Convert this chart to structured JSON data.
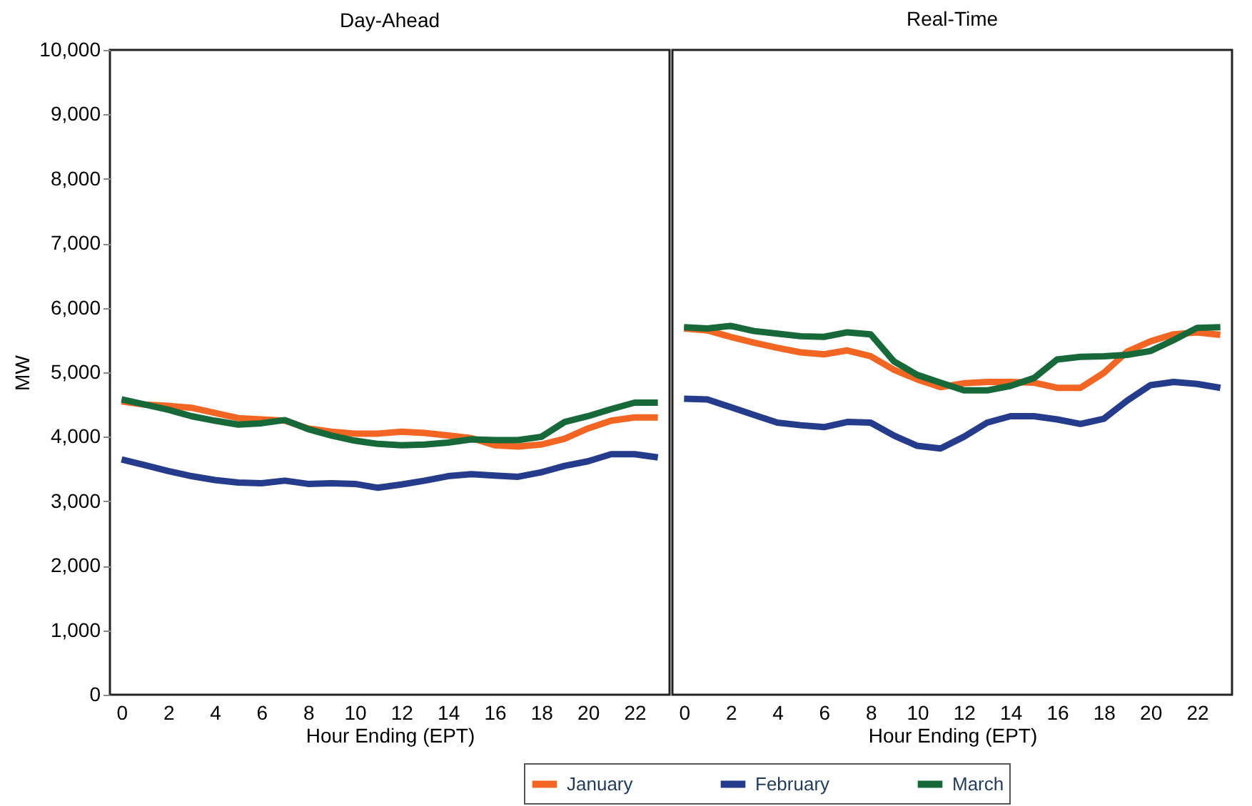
{
  "chart_data": [
    {
      "type": "line",
      "title": "Day-Ahead",
      "xlabel": "Hour Ending (EPT)",
      "ylabel": "MW",
      "x": [
        0,
        1,
        2,
        3,
        4,
        5,
        6,
        7,
        8,
        9,
        10,
        11,
        12,
        13,
        14,
        15,
        16,
        17,
        18,
        19,
        20,
        21,
        22,
        23
      ],
      "series": [
        {
          "name": "January",
          "color": "#f26522",
          "values": [
            4550,
            4500,
            4480,
            4450,
            4370,
            4290,
            4270,
            4250,
            4130,
            4080,
            4050,
            4050,
            4080,
            4060,
            4020,
            3980,
            3870,
            3850,
            3880,
            3970,
            4130,
            4250,
            4300,
            4300
          ]
        },
        {
          "name": "February",
          "color": "#253b8c",
          "values": [
            3650,
            3560,
            3470,
            3390,
            3330,
            3290,
            3280,
            3320,
            3270,
            3280,
            3270,
            3210,
            3260,
            3320,
            3390,
            3420,
            3400,
            3380,
            3450,
            3550,
            3620,
            3730,
            3730,
            3680
          ]
        },
        {
          "name": "March",
          "color": "#17693a",
          "values": [
            4580,
            4500,
            4420,
            4320,
            4250,
            4190,
            4210,
            4260,
            4120,
            4020,
            3940,
            3890,
            3870,
            3880,
            3910,
            3960,
            3950,
            3950,
            4000,
            4230,
            4320,
            4430,
            4530,
            4530
          ]
        }
      ],
      "xlim": [
        -0.5,
        23.5
      ],
      "xticks": [
        0,
        2,
        4,
        6,
        8,
        10,
        12,
        14,
        16,
        18,
        20,
        22
      ],
      "ylim": [
        0,
        10000
      ],
      "yticks": [
        {
          "value": 0,
          "label": "0"
        },
        {
          "value": 1000,
          "label": "1,000"
        },
        {
          "value": 2000,
          "label": "2,000"
        },
        {
          "value": 3000,
          "label": "3,000"
        },
        {
          "value": 4000,
          "label": "4,000"
        },
        {
          "value": 5000,
          "label": "5,000"
        },
        {
          "value": 6000,
          "label": "6,000"
        },
        {
          "value": 7000,
          "label": "7,000"
        },
        {
          "value": 8000,
          "label": "8,000"
        },
        {
          "value": 9000,
          "label": "9,000"
        },
        {
          "value": 10000,
          "label": "10,000"
        }
      ],
      "legend": "bottom",
      "grid": false,
      "marker": "none"
    },
    {
      "type": "line",
      "title": "Real-Time",
      "xlabel": "Hour Ending (EPT)",
      "x": [
        0,
        1,
        2,
        3,
        4,
        5,
        6,
        7,
        8,
        9,
        10,
        11,
        12,
        13,
        14,
        15,
        16,
        17,
        18,
        19,
        20,
        21,
        22,
        23
      ],
      "series": [
        {
          "name": "January",
          "color": "#f26522",
          "values": [
            5680,
            5650,
            5550,
            5460,
            5380,
            5310,
            5280,
            5340,
            5250,
            5040,
            4890,
            4770,
            4830,
            4850,
            4850,
            4840,
            4760,
            4760,
            4990,
            5320,
            5480,
            5590,
            5620,
            5580
          ]
        },
        {
          "name": "February",
          "color": "#253b8c",
          "values": [
            4590,
            4580,
            4460,
            4340,
            4220,
            4180,
            4150,
            4230,
            4220,
            4020,
            3860,
            3820,
            4000,
            4220,
            4320,
            4320,
            4270,
            4200,
            4280,
            4560,
            4800,
            4850,
            4820,
            4760
          ]
        },
        {
          "name": "March",
          "color": "#17693a",
          "values": [
            5700,
            5680,
            5720,
            5640,
            5600,
            5560,
            5550,
            5620,
            5590,
            5170,
            4960,
            4840,
            4720,
            4720,
            4790,
            4910,
            5200,
            5240,
            5250,
            5270,
            5330,
            5500,
            5690,
            5700
          ]
        }
      ],
      "xlim": [
        -0.5,
        23.5
      ],
      "xticks": [
        0,
        2,
        4,
        6,
        8,
        10,
        12,
        14,
        16,
        18,
        20,
        22
      ],
      "ylim": [
        0,
        10000
      ],
      "yticks": [
        {
          "value": 0,
          "label": "0"
        },
        {
          "value": 1000,
          "label": "1,000"
        },
        {
          "value": 2000,
          "label": "2,000"
        },
        {
          "value": 3000,
          "label": "3,000"
        },
        {
          "value": 4000,
          "label": "4,000"
        },
        {
          "value": 5000,
          "label": "5,000"
        },
        {
          "value": 6000,
          "label": "6,000"
        },
        {
          "value": 7000,
          "label": "7,000"
        },
        {
          "value": 8000,
          "label": "8,000"
        },
        {
          "value": 9000,
          "label": "9,000"
        },
        {
          "value": 10000,
          "label": "10,000"
        }
      ],
      "tick_labels": "x",
      "legend": "bottom",
      "grid": false,
      "marker": "none"
    }
  ]
}
